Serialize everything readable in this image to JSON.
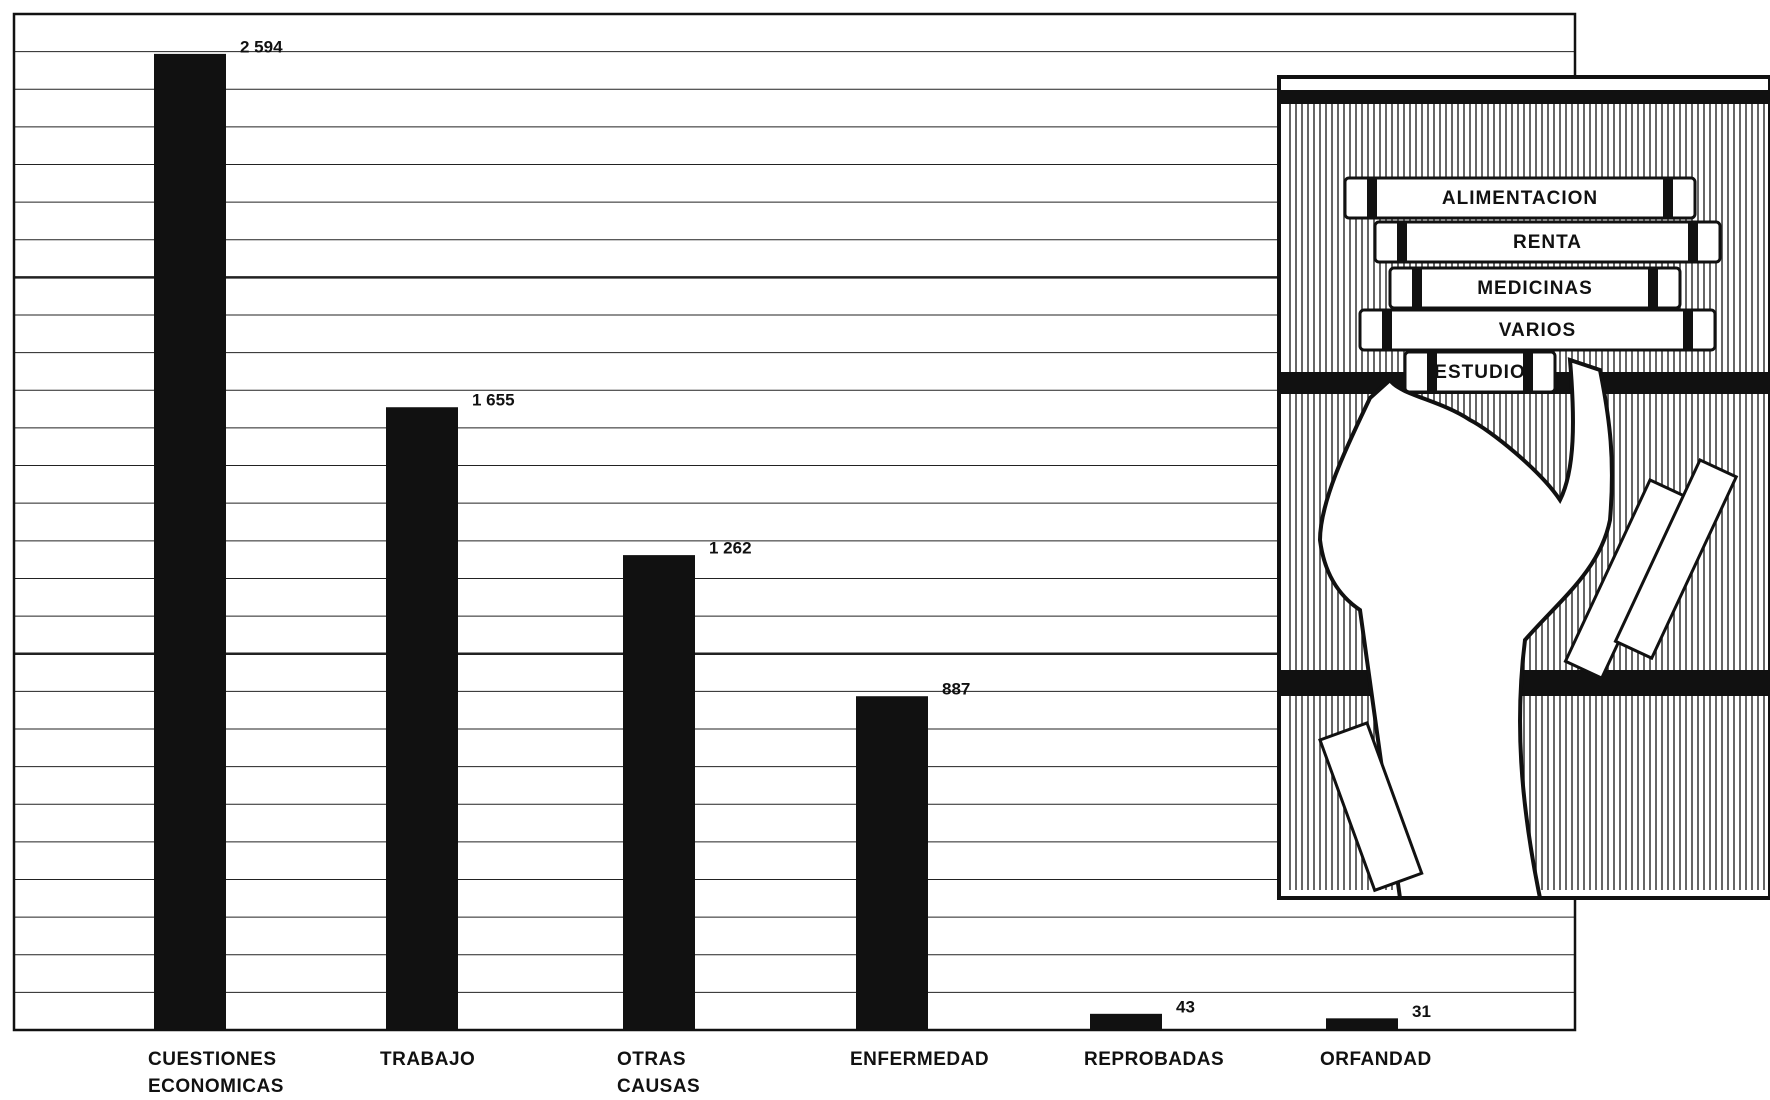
{
  "chart_data": {
    "type": "bar",
    "categories": [
      "CUESTIONES\nECONOMICAS",
      "TRABAJO",
      "OTRAS\nCAUSAS",
      "ENFERMEDAD",
      "REPROBADAS",
      "ORFANDAD"
    ],
    "values": [
      2594,
      1655,
      1262,
      887,
      43,
      31
    ],
    "value_labels": [
      "2 594",
      "1 655",
      "1 262",
      "887",
      "43",
      "31"
    ],
    "color": "#111111",
    "ylim": [
      0,
      2700
    ],
    "yticks": [
      0,
      100,
      200,
      300,
      400,
      500,
      600,
      700,
      800,
      900,
      1000,
      1100,
      1200,
      1300,
      1400,
      1500,
      1600,
      1700,
      1800,
      1900,
      2000,
      2100,
      2200,
      2300,
      2400,
      2500,
      2600,
      2700
    ],
    "major_yticks": [
      1000,
      2000
    ],
    "grid": true
  },
  "illustration": {
    "book_labels": [
      "ALIMENTACION",
      "RENTA",
      "MEDICINAS",
      "VARIOS",
      "ESTUDIO"
    ]
  }
}
